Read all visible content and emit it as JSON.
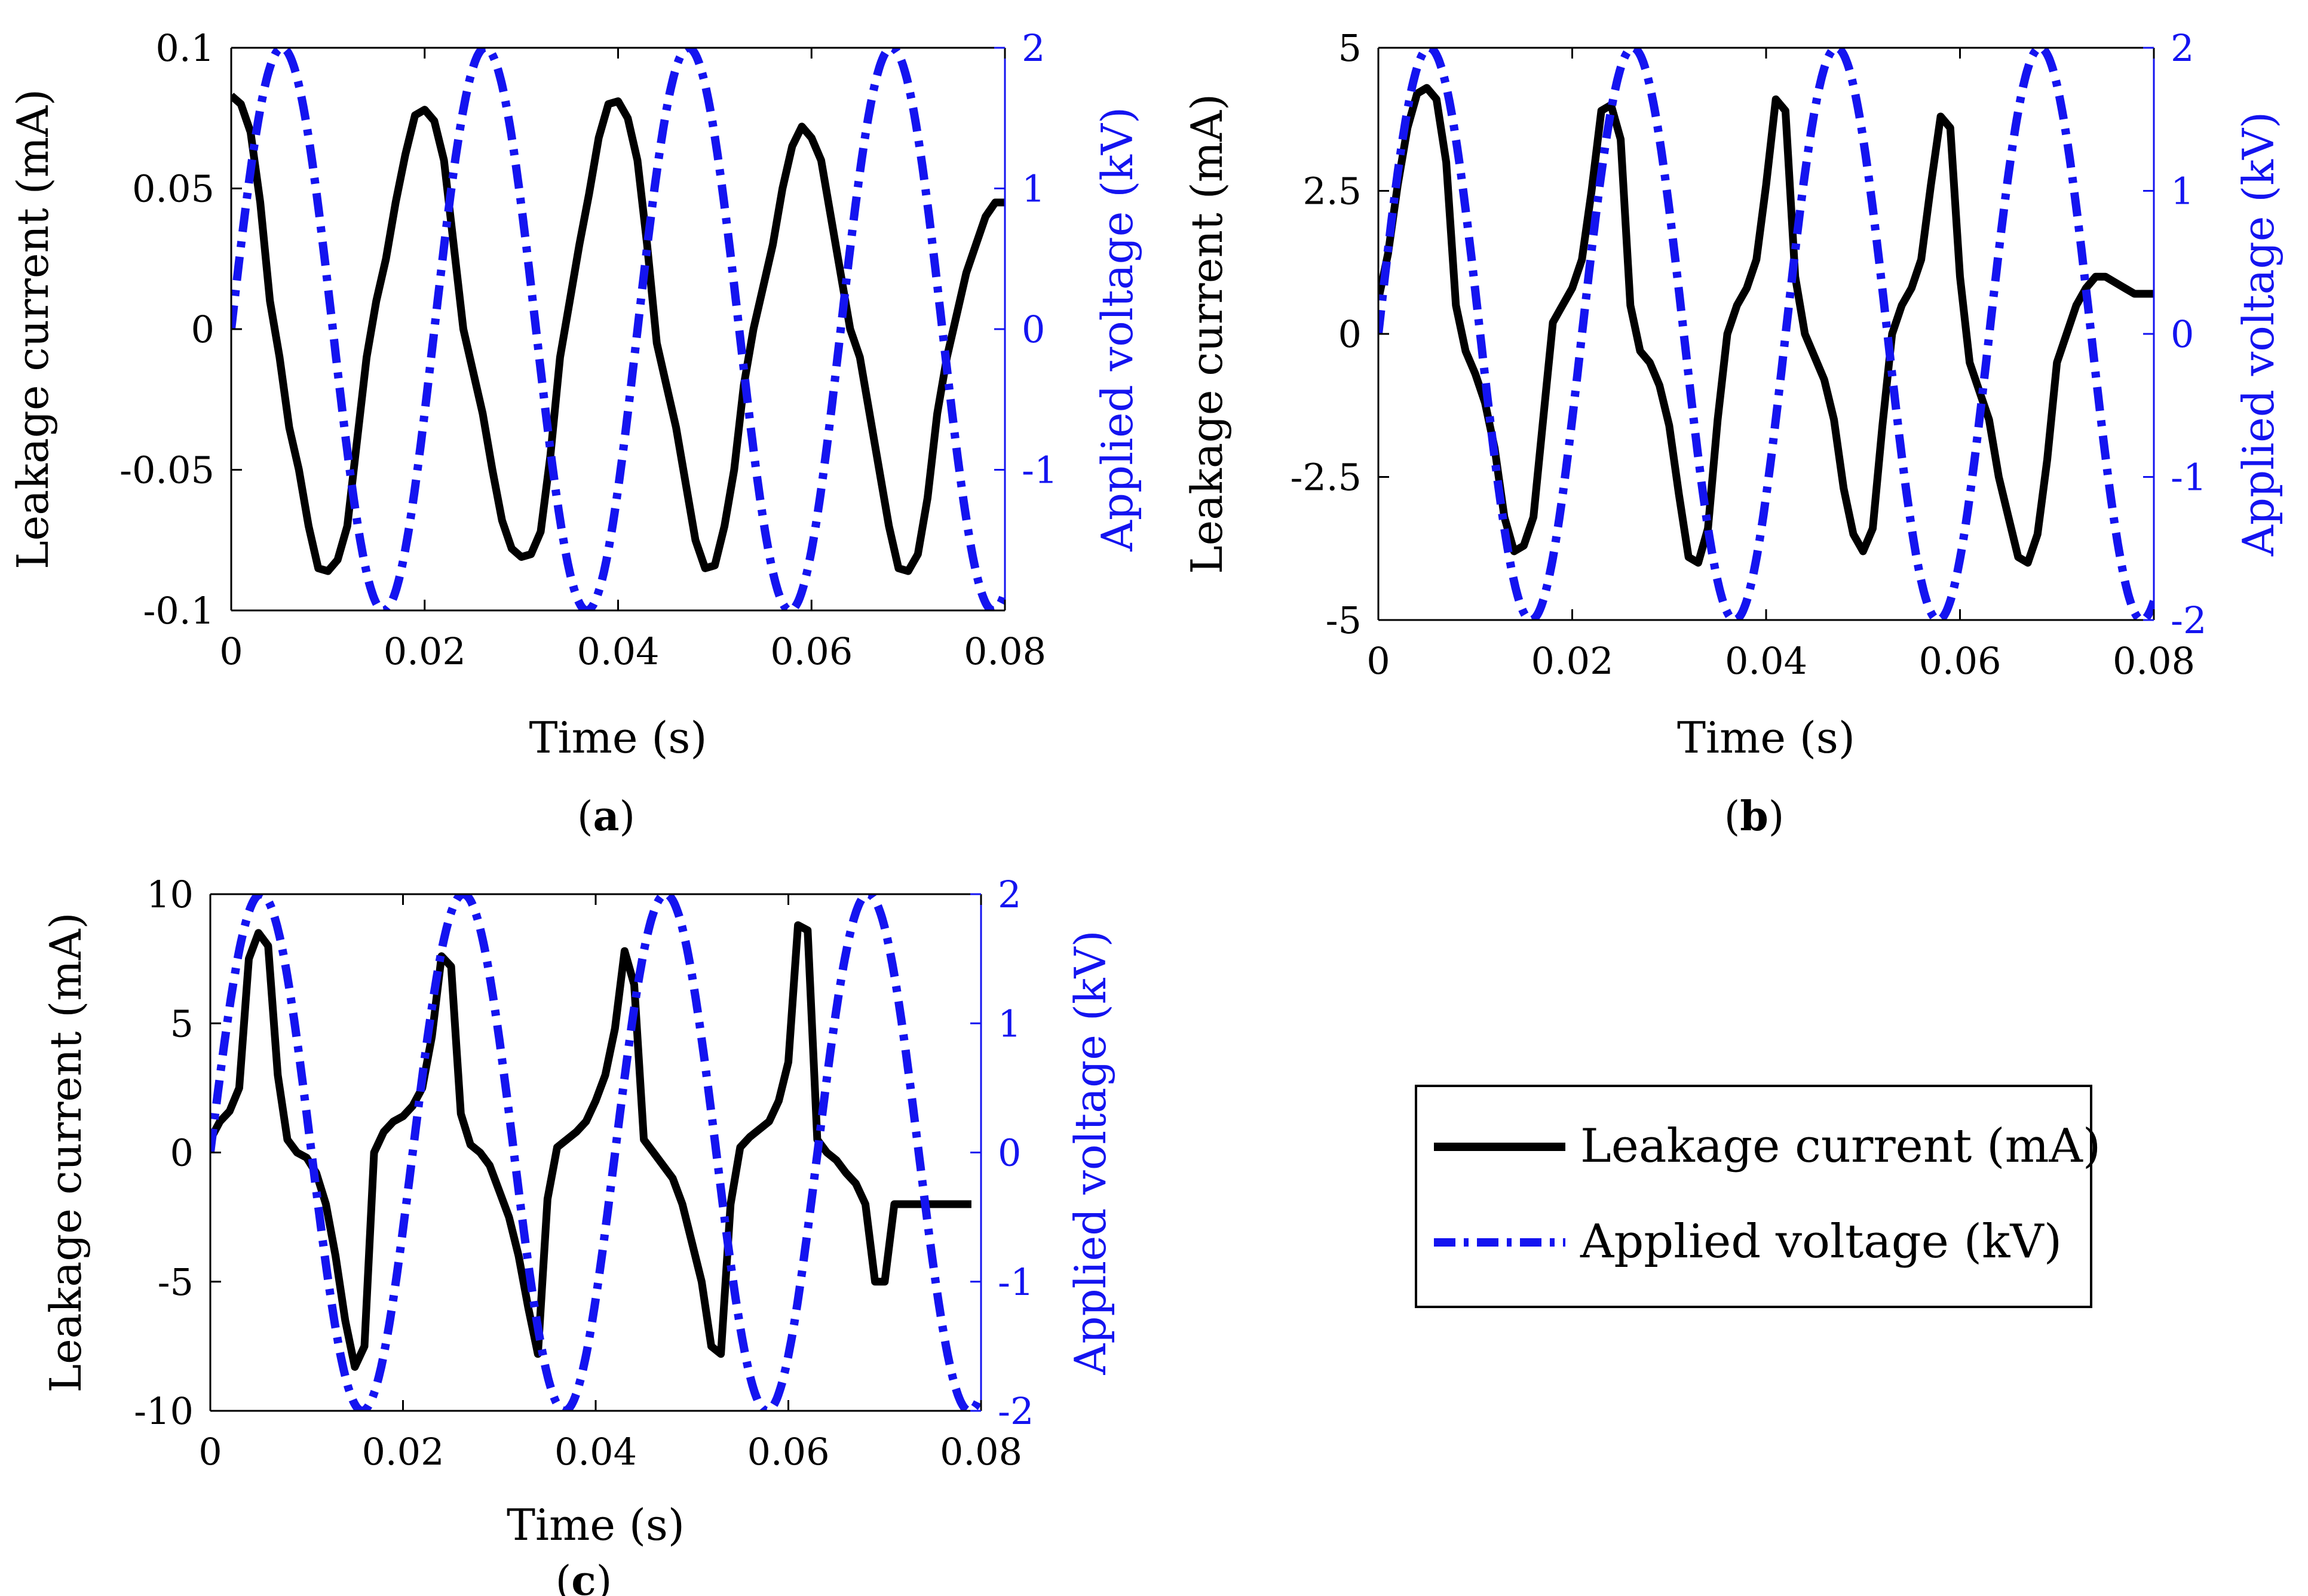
{
  "colors": {
    "leakage": "#000000",
    "voltage": "#1414f0",
    "axis": "#000000",
    "right_axis": "#1414f0"
  },
  "legend": {
    "leakage_label": "Leakage current (mA)",
    "voltage_label": "Applied voltage (kV)"
  },
  "chart_data": [
    {
      "id": "a",
      "type": "line",
      "panel_label_open": "(",
      "panel_label_letter": "a",
      "panel_label_close": ")",
      "xlabel": "Time (s)",
      "ylabel_left": "Leakage current (mA)",
      "ylabel_right": "Applied voltage (kV)",
      "xlim": [
        0,
        0.08
      ],
      "ylim_left": [
        -0.1,
        0.1
      ],
      "ylim_right": [
        -2,
        2
      ],
      "x_ticks": [
        0,
        0.02,
        0.04,
        0.06,
        0.08
      ],
      "x_tick_labels": [
        "0",
        "0.02",
        "0.04",
        "0.06",
        "0.08"
      ],
      "y_left_ticks": [
        -0.1,
        -0.05,
        0,
        0.05,
        0.1
      ],
      "y_left_tick_labels": [
        "-0.1",
        "-0.05",
        "0",
        "0.05",
        "0.1"
      ],
      "y_right_ticks": [
        -1,
        0,
        1,
        2
      ],
      "y_right_tick_labels": [
        "-1",
        "0",
        "1",
        "2"
      ],
      "series": [
        {
          "name": "Leakage current (mA)",
          "axis": "left",
          "x": [
            0,
            0.001,
            0.002,
            0.003,
            0.004,
            0.005,
            0.006,
            0.007,
            0.008,
            0.009,
            0.01,
            0.011,
            0.012,
            0.013,
            0.014,
            0.015,
            0.016,
            0.017,
            0.018,
            0.019,
            0.02,
            0.021,
            0.022,
            0.023,
            0.024,
            0.025,
            0.026,
            0.027,
            0.028,
            0.029,
            0.03,
            0.031,
            0.032,
            0.033,
            0.034,
            0.035,
            0.036,
            0.037,
            0.038,
            0.039,
            0.04,
            0.041,
            0.042,
            0.043,
            0.044,
            0.045,
            0.046,
            0.047,
            0.048,
            0.049,
            0.05,
            0.051,
            0.052,
            0.053,
            0.054,
            0.055,
            0.056,
            0.057,
            0.058,
            0.059,
            0.06,
            0.061,
            0.062,
            0.063,
            0.064,
            0.065,
            0.066,
            0.067,
            0.068,
            0.069,
            0.07,
            0.071,
            0.072,
            0.073,
            0.074,
            0.075,
            0.076,
            0.077,
            0.078,
            0.079,
            0.08
          ],
          "values": [
            0.083,
            0.08,
            0.07,
            0.045,
            0.01,
            -0.01,
            -0.035,
            -0.05,
            -0.07,
            -0.085,
            -0.086,
            -0.082,
            -0.07,
            -0.04,
            -0.01,
            0.01,
            0.025,
            0.045,
            0.062,
            0.076,
            0.078,
            0.074,
            0.06,
            0.03,
            0.0,
            -0.015,
            -0.03,
            -0.05,
            -0.068,
            -0.078,
            -0.081,
            -0.08,
            -0.072,
            -0.045,
            -0.01,
            0.01,
            0.03,
            0.048,
            0.068,
            0.08,
            0.081,
            0.075,
            0.06,
            0.03,
            -0.005,
            -0.02,
            -0.035,
            -0.055,
            -0.075,
            -0.085,
            -0.084,
            -0.07,
            -0.05,
            -0.02,
            0.0,
            0.015,
            0.03,
            0.05,
            0.065,
            0.072,
            0.068,
            0.06,
            0.04,
            0.02,
            0.0,
            -0.01,
            -0.03,
            -0.05,
            -0.07,
            -0.085,
            -0.086,
            -0.08,
            -0.06,
            -0.03,
            -0.01,
            0.005,
            0.02,
            0.03,
            0.04,
            0.045,
            0.045
          ]
        },
        {
          "name": "Applied voltage (kV)",
          "axis": "right",
          "function": "sine",
          "amplitude": 2,
          "frequency_hz": 47.6,
          "phase_rad": 0
        }
      ]
    },
    {
      "id": "b",
      "type": "line",
      "panel_label_open": "(",
      "panel_label_letter": "b",
      "panel_label_close": ")",
      "xlabel": "Time (s)",
      "ylabel_left": "Leakage current (mA)",
      "ylabel_right": "Applied voltage (kV)",
      "xlim": [
        0,
        0.08
      ],
      "ylim_left": [
        -5,
        5
      ],
      "ylim_right": [
        -2,
        2
      ],
      "x_ticks": [
        0,
        0.02,
        0.04,
        0.06,
        0.08
      ],
      "x_tick_labels": [
        "0",
        "0.02",
        "0.04",
        "0.06",
        "0.08"
      ],
      "y_left_ticks": [
        -5,
        -2.5,
        0,
        2.5,
        5
      ],
      "y_left_tick_labels": [
        "-5",
        "-2.5",
        "0",
        "2.5",
        "5"
      ],
      "y_right_ticks": [
        -2,
        -1,
        0,
        1,
        2
      ],
      "y_right_tick_labels": [
        "-2",
        "-1",
        "0",
        "1",
        "2"
      ],
      "series": [
        {
          "name": "Leakage current (mA)",
          "axis": "left",
          "x": [
            0,
            0.001,
            0.002,
            0.003,
            0.004,
            0.005,
            0.006,
            0.007,
            0.008,
            0.009,
            0.01,
            0.011,
            0.012,
            0.013,
            0.014,
            0.015,
            0.016,
            0.017,
            0.018,
            0.019,
            0.02,
            0.021,
            0.022,
            0.023,
            0.024,
            0.025,
            0.026,
            0.027,
            0.028,
            0.029,
            0.03,
            0.031,
            0.032,
            0.033,
            0.034,
            0.035,
            0.036,
            0.037,
            0.038,
            0.039,
            0.04,
            0.041,
            0.042,
            0.043,
            0.044,
            0.045,
            0.046,
            0.047,
            0.048,
            0.049,
            0.05,
            0.051,
            0.052,
            0.053,
            0.054,
            0.055,
            0.056,
            0.057,
            0.058,
            0.059,
            0.06,
            0.061,
            0.062,
            0.063,
            0.064,
            0.065,
            0.066,
            0.067,
            0.068,
            0.069,
            0.07,
            0.071,
            0.072,
            0.073,
            0.074,
            0.075,
            0.076,
            0.077,
            0.078,
            0.079,
            0.08
          ],
          "values": [
            0.6,
            1.4,
            2.6,
            3.6,
            4.2,
            4.3,
            4.1,
            3.0,
            0.5,
            -0.3,
            -0.7,
            -1.2,
            -2.0,
            -3.2,
            -3.8,
            -3.7,
            -3.2,
            -1.5,
            0.2,
            0.5,
            0.8,
            1.3,
            2.5,
            3.9,
            4.0,
            3.4,
            0.5,
            -0.3,
            -0.5,
            -0.9,
            -1.6,
            -2.8,
            -3.9,
            -4.0,
            -3.4,
            -1.5,
            0.0,
            0.5,
            0.8,
            1.3,
            2.6,
            4.1,
            3.9,
            1.0,
            0.0,
            -0.4,
            -0.8,
            -1.5,
            -2.7,
            -3.5,
            -3.8,
            -3.4,
            -1.6,
            0.0,
            0.5,
            0.8,
            1.3,
            2.6,
            3.8,
            3.6,
            1.0,
            -0.5,
            -1.0,
            -1.5,
            -2.5,
            -3.2,
            -3.9,
            -4.0,
            -3.5,
            -2.2,
            -0.5,
            0.0,
            0.5,
            0.8,
            1.0,
            1.0,
            0.9,
            0.8,
            0.7,
            0.7,
            0.7
          ]
        },
        {
          "name": "Applied voltage (kV)",
          "axis": "right",
          "function": "sine",
          "amplitude": 2,
          "frequency_hz": 47.6,
          "phase_rad": 0
        }
      ]
    },
    {
      "id": "c",
      "type": "line",
      "panel_label_open": "(",
      "panel_label_letter": "c",
      "panel_label_close": ")",
      "xlabel": "Time (s)",
      "ylabel_left": "Leakage current (mA)",
      "ylabel_right": "Applied voltage (kV)",
      "xlim": [
        0,
        0.08
      ],
      "ylim_left": [
        -10,
        10
      ],
      "ylim_right": [
        -2,
        2
      ],
      "x_ticks": [
        0,
        0.02,
        0.04,
        0.06,
        0.08
      ],
      "x_tick_labels": [
        "0",
        "0.02",
        "0.04",
        "0.06",
        "0.08"
      ],
      "y_left_ticks": [
        -10,
        -5,
        0,
        5,
        10
      ],
      "y_left_tick_labels": [
        "-10",
        "-5",
        "0",
        "5",
        "10"
      ],
      "y_right_ticks": [
        -2,
        -1,
        0,
        1,
        2
      ],
      "y_right_tick_labels": [
        "-2",
        "-1",
        "0",
        "1",
        "2"
      ],
      "series": [
        {
          "name": "Leakage current (mA)",
          "axis": "left",
          "x": [
            0,
            0.001,
            0.002,
            0.003,
            0.004,
            0.005,
            0.006,
            0.007,
            0.008,
            0.009,
            0.01,
            0.011,
            0.012,
            0.013,
            0.014,
            0.015,
            0.016,
            0.017,
            0.018,
            0.019,
            0.02,
            0.021,
            0.022,
            0.023,
            0.024,
            0.025,
            0.026,
            0.027,
            0.028,
            0.029,
            0.03,
            0.031,
            0.032,
            0.033,
            0.034,
            0.035,
            0.036,
            0.037,
            0.038,
            0.039,
            0.04,
            0.041,
            0.042,
            0.043,
            0.044,
            0.045,
            0.046,
            0.047,
            0.048,
            0.049,
            0.05,
            0.051,
            0.052,
            0.053,
            0.054,
            0.055,
            0.056,
            0.057,
            0.058,
            0.059,
            0.06,
            0.061,
            0.062,
            0.063,
            0.064,
            0.065,
            0.066,
            0.067,
            0.068,
            0.069,
            0.07,
            0.071,
            0.072,
            0.073,
            0.074,
            0.075,
            0.076,
            0.077,
            0.078,
            0.079
          ],
          "values": [
            0.5,
            1.2,
            1.6,
            2.5,
            7.5,
            8.5,
            8.0,
            3.0,
            0.5,
            0.0,
            -0.2,
            -0.8,
            -2.0,
            -4.0,
            -6.5,
            -8.3,
            -7.5,
            0.0,
            0.8,
            1.2,
            1.4,
            1.8,
            2.5,
            4.5,
            7.6,
            7.2,
            1.5,
            0.3,
            0.0,
            -0.5,
            -1.5,
            -2.5,
            -4.0,
            -6.0,
            -7.8,
            -1.8,
            0.2,
            0.5,
            0.8,
            1.2,
            2.0,
            3.0,
            4.8,
            7.8,
            6.5,
            0.5,
            0.0,
            -0.5,
            -1.0,
            -2.0,
            -3.5,
            -5.0,
            -7.5,
            -7.8,
            -2.0,
            0.2,
            0.6,
            0.9,
            1.2,
            2.0,
            3.5,
            8.8,
            8.6,
            0.5,
            0.0,
            -0.3,
            -0.8,
            -1.2,
            -2.0,
            -5.0,
            -5.0,
            -2.0,
            -2.0,
            -2.0,
            -2.0,
            -2.0,
            -2.0,
            -2.0,
            -2.0,
            -2.0
          ]
        },
        {
          "name": "Applied voltage (kV)",
          "axis": "right",
          "function": "sine",
          "amplitude": 2,
          "frequency_hz": 47.6,
          "phase_rad": 0
        }
      ]
    }
  ]
}
